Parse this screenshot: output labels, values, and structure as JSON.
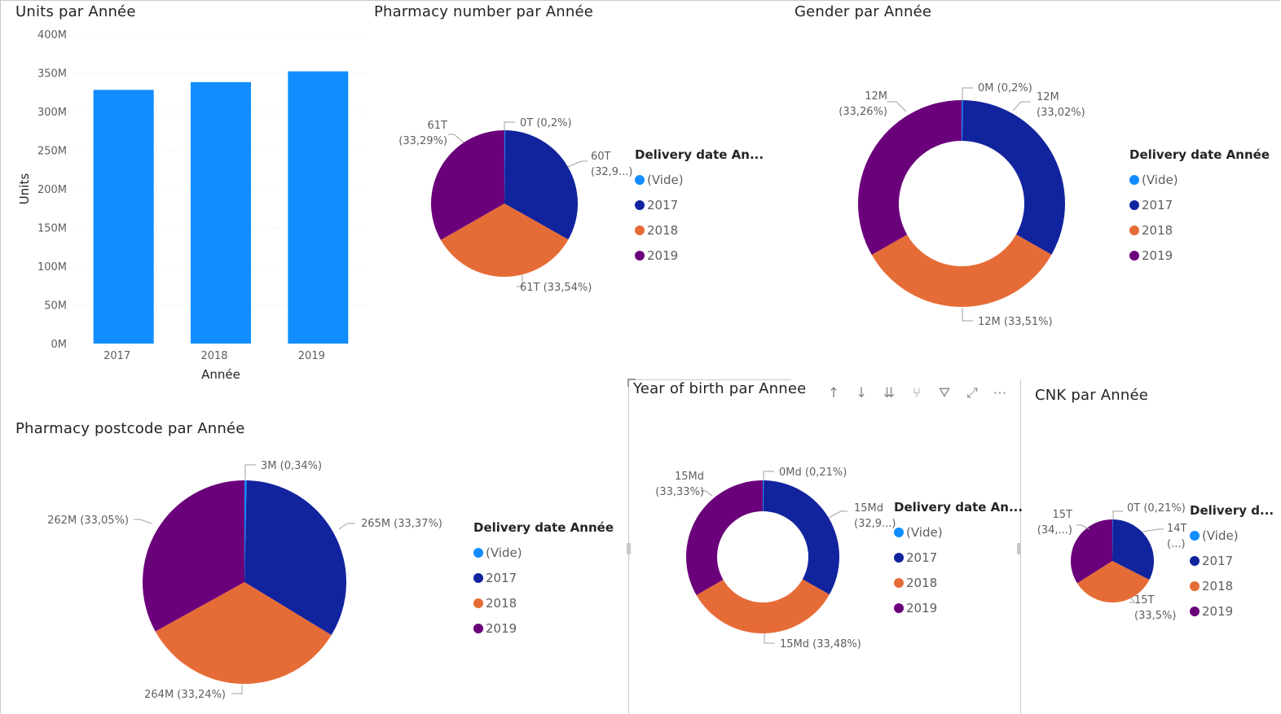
{
  "colors": {
    "bar": "#118DFF",
    "vide": "#118DFF",
    "y2017": "#12239E",
    "y2018": "#E66C37",
    "y2019": "#6B007B"
  },
  "units_chart": {
    "title": "Units par Année",
    "chart_data": {
      "type": "bar",
      "categories": [
        "2017",
        "2018",
        "2019"
      ],
      "values": [
        328,
        338,
        352
      ],
      "value_unit": "M",
      "xlabel": "Année",
      "ylabel": "Units",
      "ylim": [
        0,
        400
      ],
      "yticks": [
        "0M",
        "50M",
        "100M",
        "150M",
        "200M",
        "250M",
        "300M",
        "350M",
        "400M"
      ],
      "grid": true
    }
  },
  "legend_items": [
    "(Vide)",
    "2017",
    "2018",
    "2019"
  ],
  "pharmacy_number": {
    "title": "Pharmacy number par Année",
    "legend_title": "Delivery date An...",
    "chart_data": {
      "type": "pie",
      "categories": [
        "(Vide)",
        "2017",
        "2018",
        "2019"
      ],
      "values": [
        0.2,
        32.97,
        33.54,
        33.29
      ],
      "labels": [
        "0T (0,2%)",
        "60T (32,9...)",
        "61T (33,54%)",
        "61T (33,29%)"
      ]
    }
  },
  "gender": {
    "title": "Gender par Année",
    "legend_title": "Delivery date Année",
    "chart_data": {
      "type": "pie",
      "donut": true,
      "categories": [
        "(Vide)",
        "2017",
        "2018",
        "2019"
      ],
      "values": [
        0.2,
        33.02,
        33.51,
        33.26
      ],
      "labels": [
        "0M (0,2%)",
        "12M (33,02%)",
        "12M (33,51%)",
        "12M (33,26%)"
      ]
    }
  },
  "pharmacy_postcode": {
    "title": "Pharmacy postcode par Année",
    "legend_title": "Delivery date Année",
    "chart_data": {
      "type": "pie",
      "categories": [
        "(Vide)",
        "2017",
        "2018",
        "2019"
      ],
      "values": [
        0.34,
        33.37,
        33.24,
        33.05
      ],
      "labels": [
        "3M (0,34%)",
        "265M (33,37%)",
        "264M (33,24%)",
        "262M (33,05%)"
      ]
    }
  },
  "year_of_birth": {
    "title": "Year of birth par Annee",
    "legend_title": "Delivery date An...",
    "chart_data": {
      "type": "pie",
      "donut": true,
      "categories": [
        "(Vide)",
        "2017",
        "2018",
        "2019"
      ],
      "values": [
        0.21,
        32.98,
        33.48,
        33.33
      ],
      "labels": [
        "0Md (0,21%)",
        "15Md (32,9...)",
        "15Md (33,48%)",
        "15Md (33,33%)"
      ]
    }
  },
  "cnk": {
    "title": "CNK par Année",
    "legend_title": "Delivery d...",
    "chart_data": {
      "type": "pie",
      "categories": [
        "(Vide)",
        "2017",
        "2018",
        "2019"
      ],
      "values": [
        0.21,
        32.29,
        33.5,
        34.0
      ],
      "labels": [
        "0T (0,21%)",
        "14T (...)",
        "15T (33,5%)",
        "15T (34,...)"
      ]
    }
  },
  "toolbar": {
    "icons": [
      "arrow-up-icon",
      "arrow-down-icon",
      "double-arrow-down-icon",
      "expand-hierarchy-icon",
      "filter-icon",
      "focus-mode-icon",
      "more-options-icon"
    ],
    "glyphs": [
      "↑",
      "↓",
      "⇊",
      "⑂",
      "⛛",
      "⤢",
      "⋯"
    ]
  }
}
